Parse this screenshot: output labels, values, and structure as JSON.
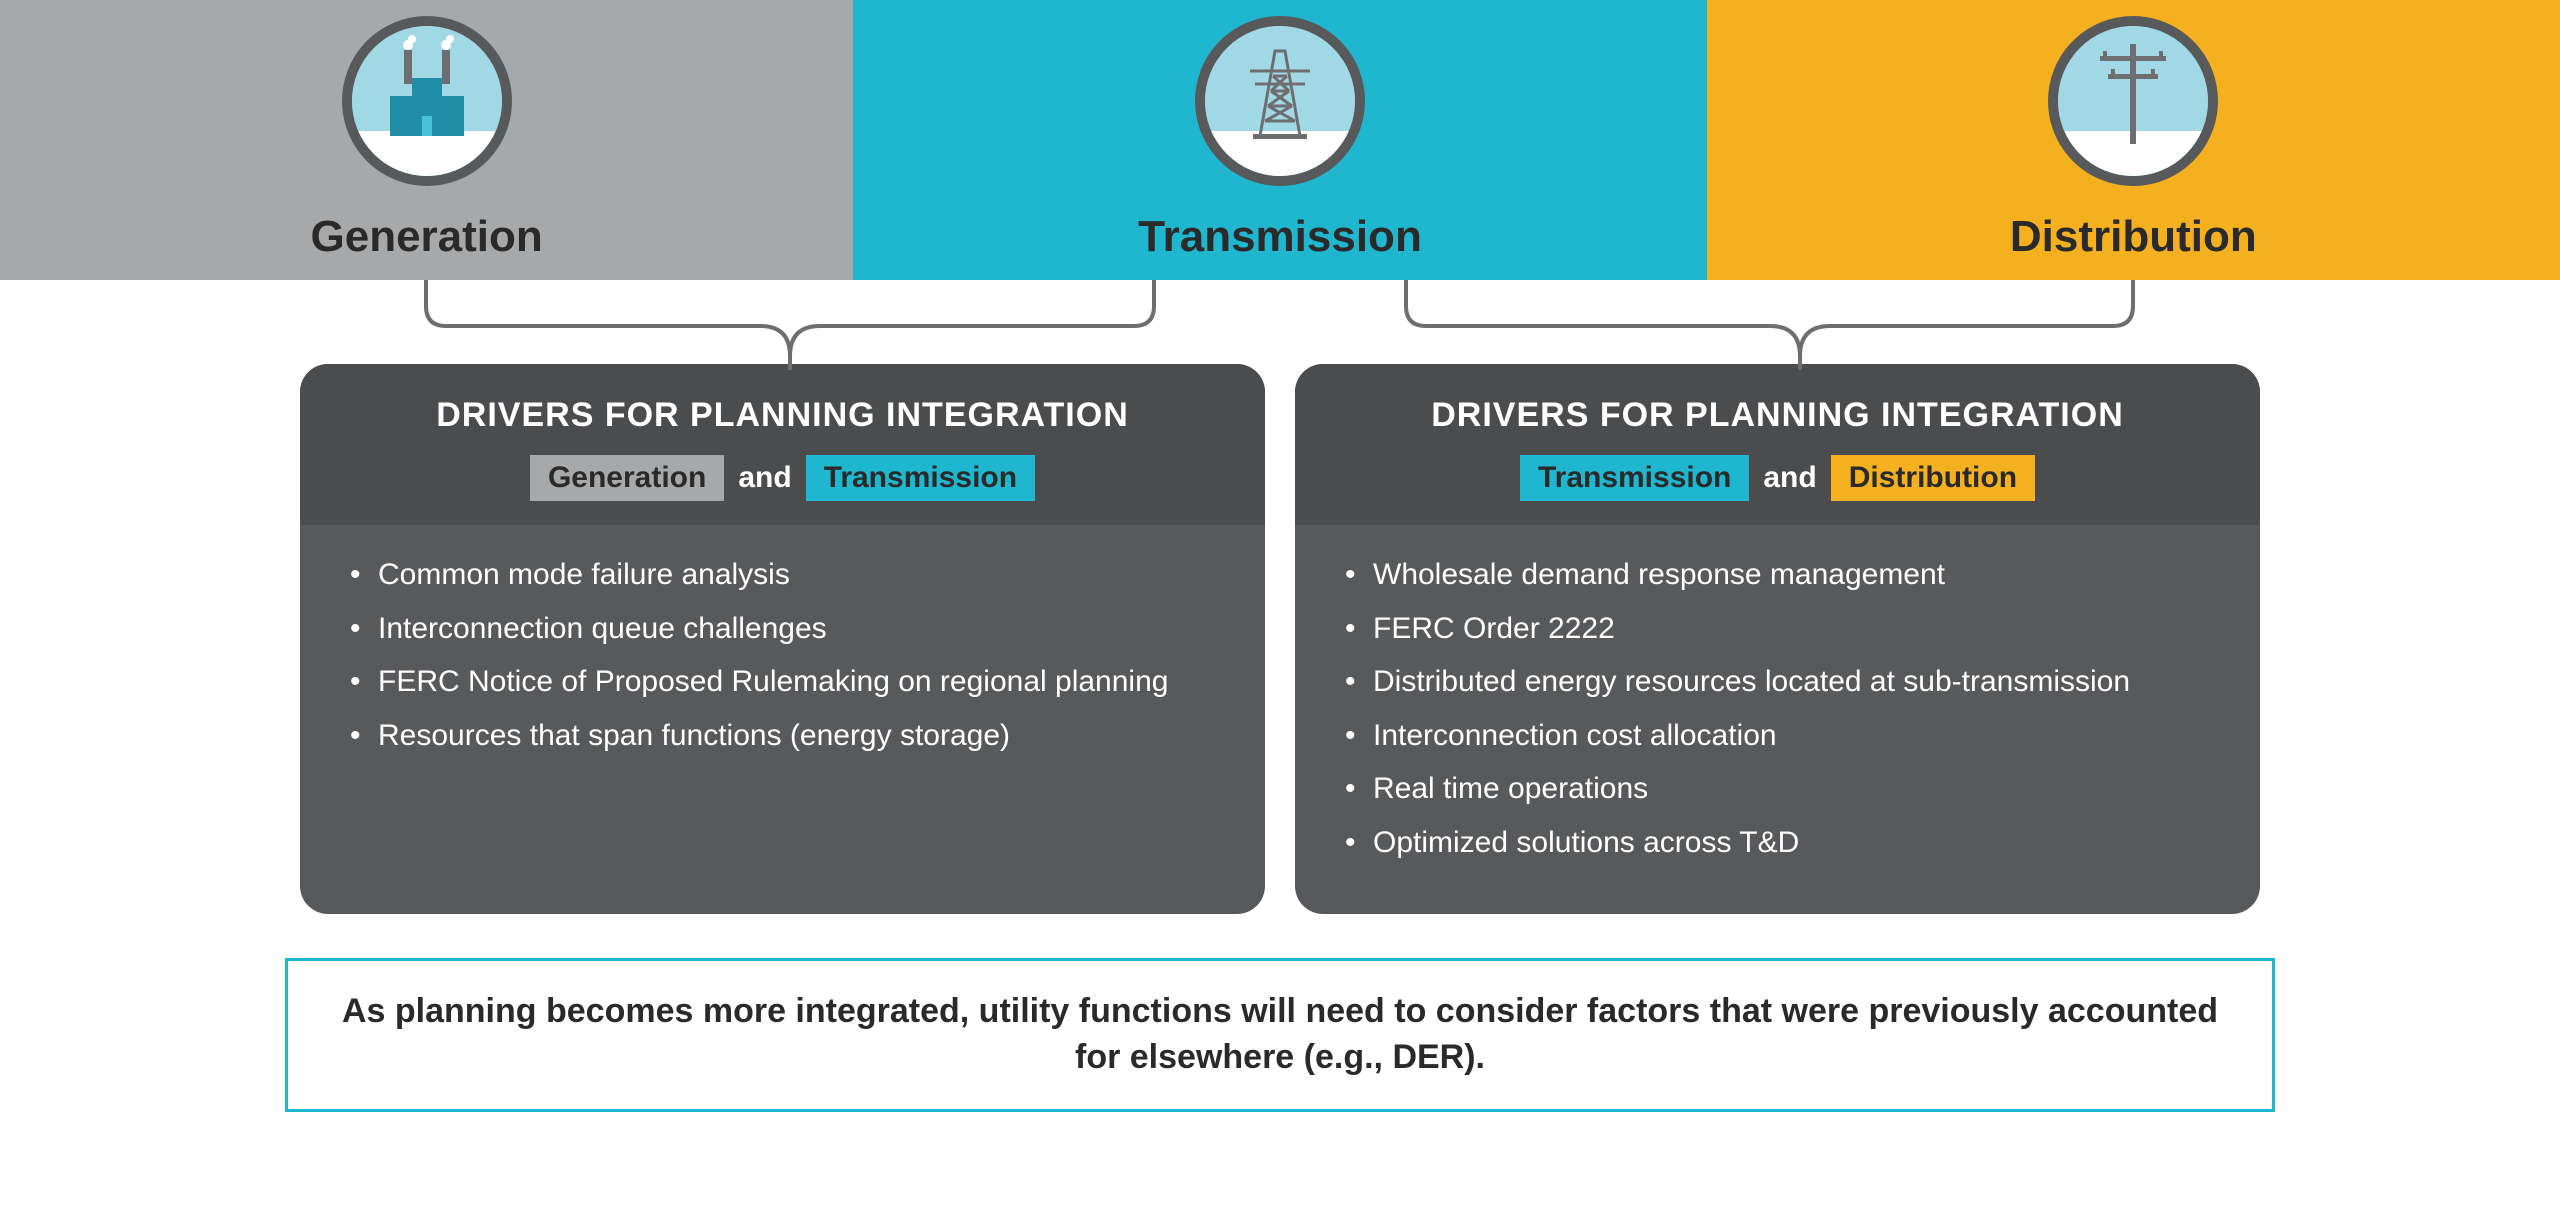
{
  "colors": {
    "stage_generation_bg": "#a7a8aa",
    "stage_transmission_bg": "#1fb6cf",
    "stage_distribution_bg": "#f5b020",
    "ring_border": "#58595b",
    "ring_sky": "#a1d8e6",
    "ring_ground": "#ffffff",
    "card_bg": "#58595b",
    "card_header_bg": "#4b4c4e",
    "text_dark": "#2a2a2a",
    "text_light": "#ffffff",
    "connector_stroke": "#6d6e70",
    "footer_border": "#1fb6cf",
    "chip_generation": "#a7a8aa",
    "chip_transmission": "#1fb6cf",
    "chip_distribution": "#f5b020"
  },
  "stages": [
    {
      "key": "generation",
      "label": "Generation"
    },
    {
      "key": "transmission",
      "label": "Transmission"
    },
    {
      "key": "distribution",
      "label": "Distribution"
    }
  ],
  "cards": [
    {
      "title": "DRIVERS FOR PLANNING INTEGRATION",
      "chip_left": {
        "label": "Generation",
        "color_key": "chip_generation"
      },
      "chip_right": {
        "label": "Transmission",
        "color_key": "chip_transmission"
      },
      "and": "and",
      "items": [
        "Common mode failure analysis",
        "Interconnection queue challenges",
        "FERC Notice of Proposed Rulemaking on regional planning",
        "Resources that span functions (energy storage)"
      ]
    },
    {
      "title": "DRIVERS FOR PLANNING INTEGRATION",
      "chip_left": {
        "label": "Transmission",
        "color_key": "chip_transmission"
      },
      "chip_right": {
        "label": "Distribution",
        "color_key": "chip_distribution"
      },
      "and": "and",
      "items": [
        "Wholesale demand response management",
        "FERC Order 2222",
        "Distributed energy resources located at sub-transmission",
        "Interconnection cost allocation",
        "Real time operations",
        "Optimized solutions across T&D"
      ]
    }
  ],
  "footer": "As planning becomes more integrated, utility functions will need to consider factors that were previously accounted for elsewhere (e.g., DER)."
}
